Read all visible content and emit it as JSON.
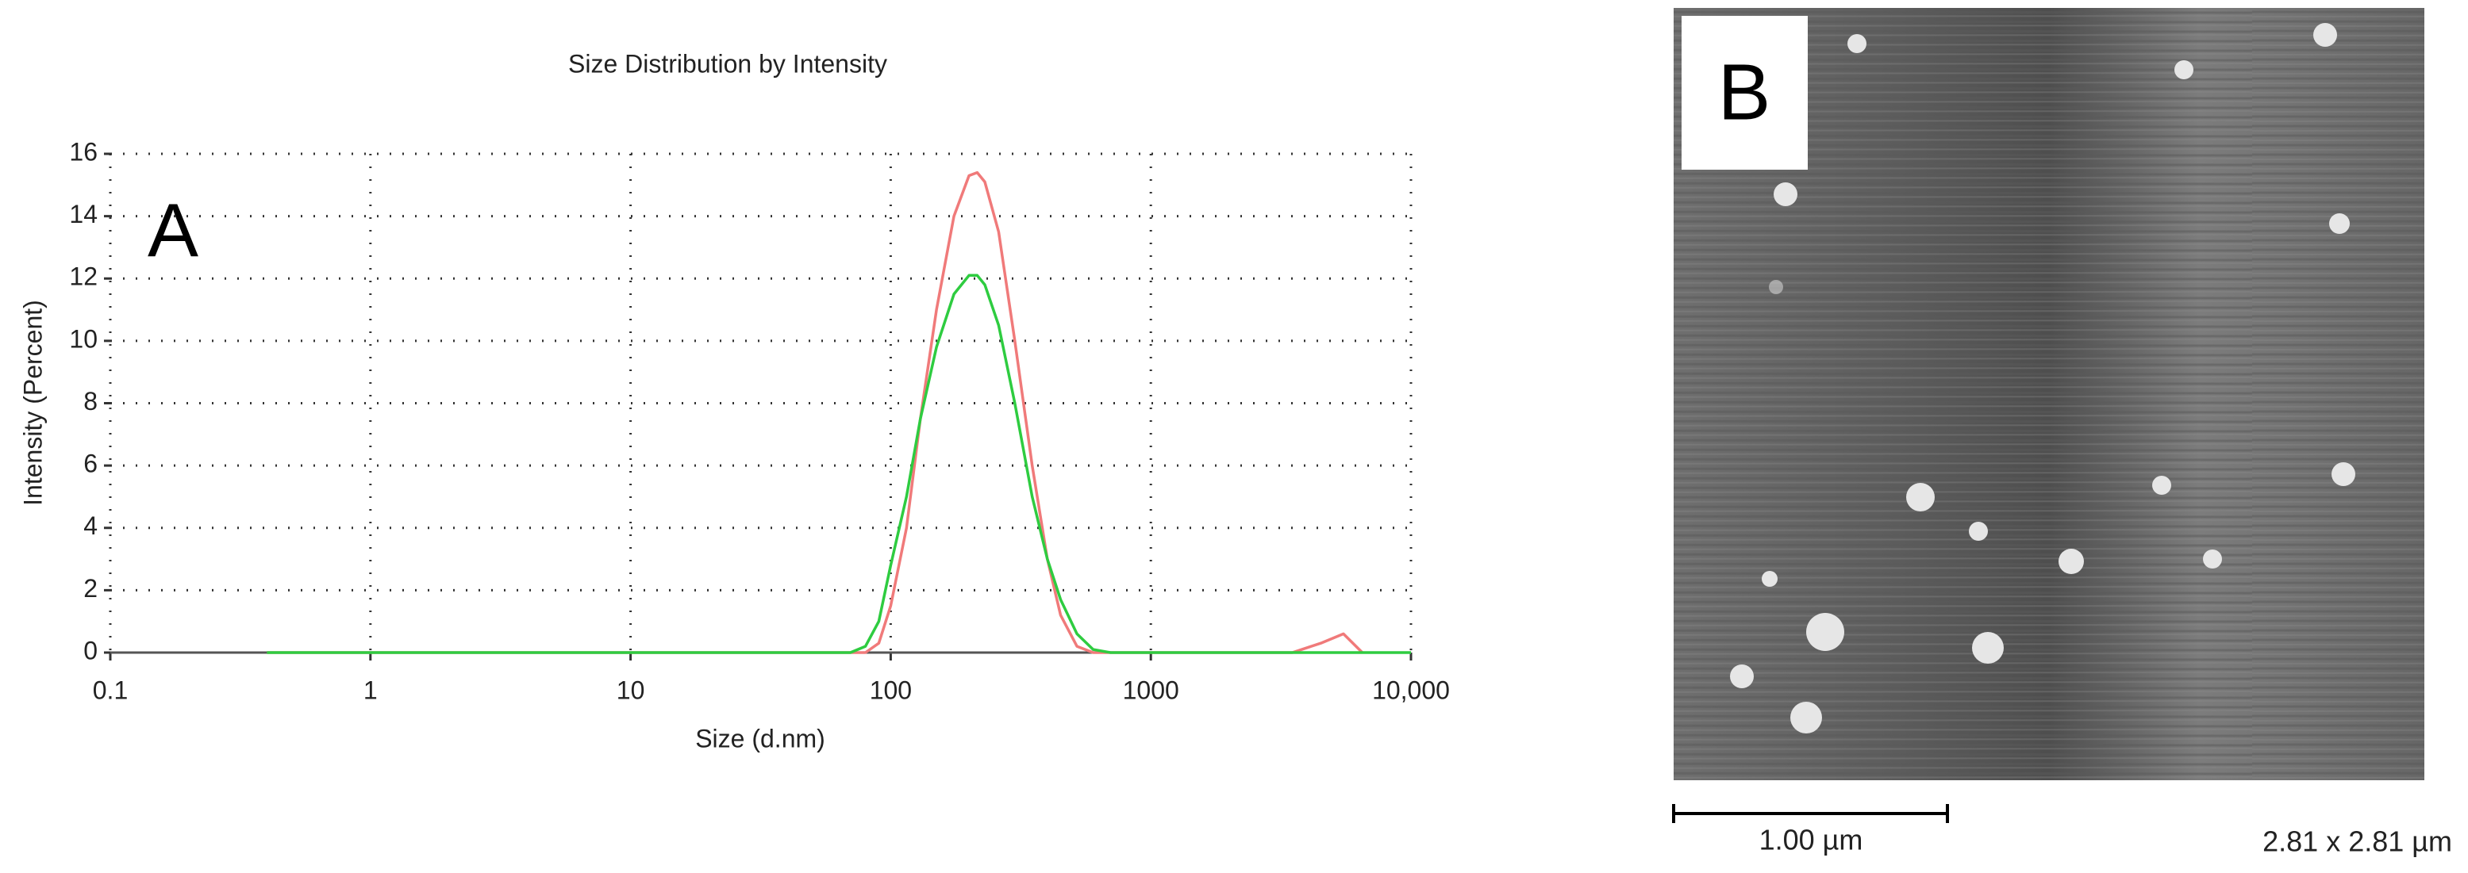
{
  "chart_data": {
    "type": "line",
    "title": "Size Distribution by Intensity",
    "annotation": "A",
    "x_label": "Size (d.nm)",
    "y_label": "Intensity (Percent)",
    "x": [
      0.4,
      1,
      10,
      70,
      80,
      90,
      100,
      115,
      130,
      150,
      175,
      200,
      215,
      230,
      260,
      300,
      350,
      400,
      450,
      520,
      600,
      700,
      800,
      1000,
      3500,
      4500,
      5500,
      6500,
      10000
    ],
    "series": [
      {
        "name": "Red",
        "color": "#f07a7a",
        "values": [
          0,
          0,
          0,
          0,
          0,
          0.3,
          1.5,
          4,
          7.5,
          11,
          14,
          15.3,
          15.4,
          15.1,
          13.5,
          10,
          6,
          3,
          1.2,
          0.2,
          0,
          0,
          0,
          0,
          0,
          0.3,
          0.6,
          0,
          null
        ]
      },
      {
        "name": "Green",
        "color": "#2ecc40",
        "values": [
          0,
          0,
          0,
          0,
          0.2,
          1,
          2.8,
          5,
          7.5,
          9.8,
          11.5,
          12.1,
          12.1,
          11.8,
          10.5,
          8,
          5,
          3,
          1.7,
          0.6,
          0.1,
          0,
          0,
          0,
          0,
          0,
          0,
          0,
          0
        ]
      }
    ],
    "xlim": [
      0.1,
      10000
    ],
    "xlog": true,
    "xticks": [
      0.1,
      1,
      10,
      100,
      1000,
      {
        "value": 10000,
        "label": "10,000"
      }
    ],
    "ylim": [
      0,
      16
    ],
    "yticks": [
      0,
      2,
      4,
      6,
      8,
      10,
      12,
      14,
      16
    ],
    "grid": true
  },
  "panel_b": {
    "label": "B",
    "scale_bar": "1.00 µm",
    "size": "2.81 x 2.81 µm"
  }
}
